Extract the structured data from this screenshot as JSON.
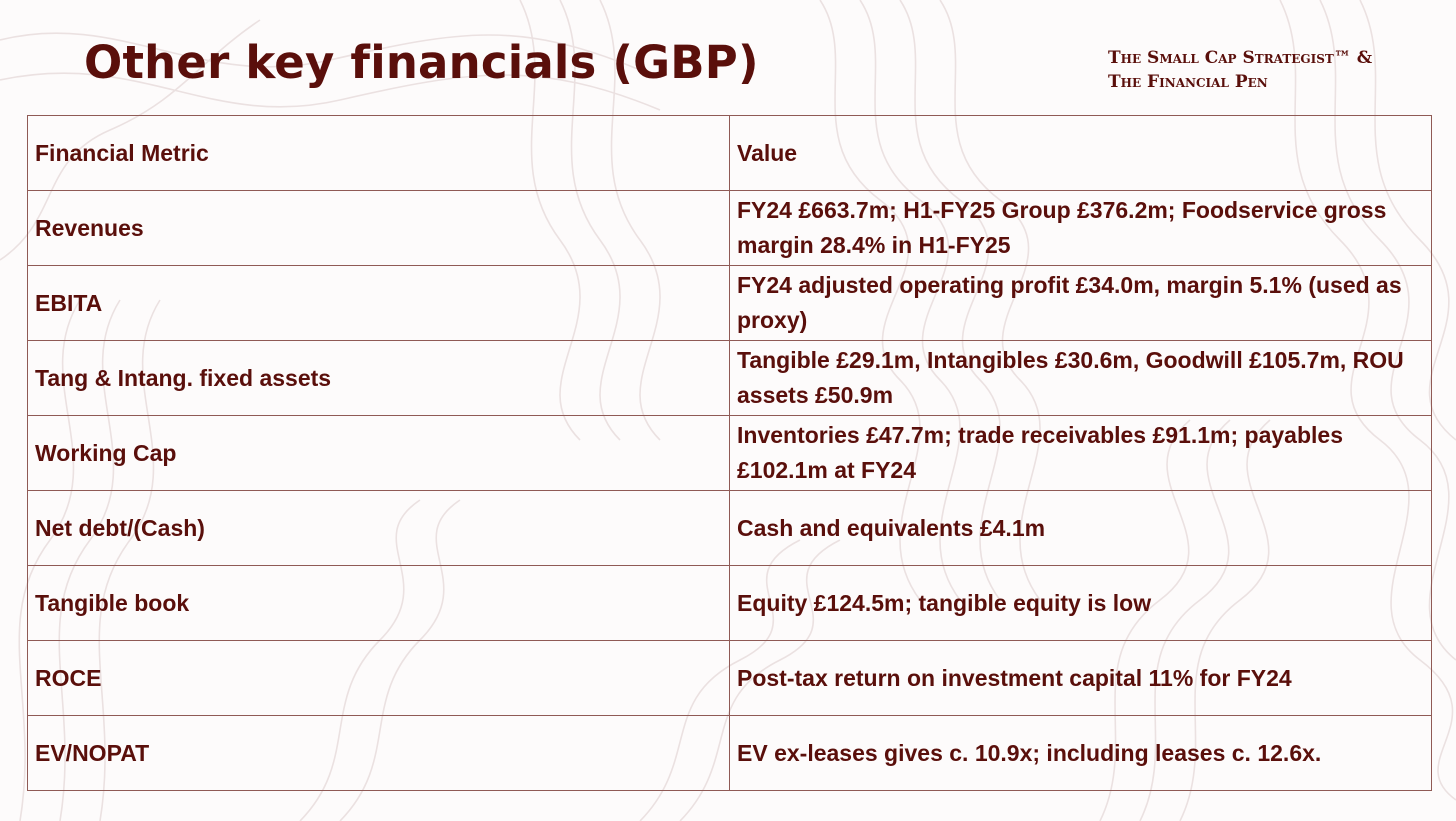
{
  "title": "Other key financials (GBP)",
  "brand": {
    "line1": "The Small Cap Strategist™ &",
    "line2": "The Financial Pen"
  },
  "colors": {
    "accent": "#5a0f0b",
    "border": "#8f5a55",
    "background": "#fdfbfb",
    "contour": "#e9dede"
  },
  "table": {
    "headers": [
      "Financial Metric",
      "Value"
    ],
    "rows": [
      {
        "metric": "Revenues",
        "value": "FY24 £663.7m; H1-FY25 Group £376.2m; Foodservice gross margin 28.4% in H1-FY25"
      },
      {
        "metric": "EBITA",
        "value": "FY24 adjusted operating profit £34.0m, margin 5.1% (used as proxy)"
      },
      {
        "metric": "Tang & Intang. fixed assets",
        "value": "Tangible £29.1m, Intangibles £30.6m, Goodwill £105.7m, ROU assets £50.9m"
      },
      {
        "metric": "Working Cap",
        "value": "Inventories £47.7m; trade receivables £91.1m; payables £102.1m at FY24"
      },
      {
        "metric": "Net debt/(Cash)",
        "value": "Cash and equivalents £4.1m"
      },
      {
        "metric": "Tangible book",
        "value": "Equity £124.5m; tangible equity is low"
      },
      {
        "metric": "ROCE",
        "value": "Post-tax return on investment capital 11% for FY24"
      },
      {
        "metric": "EV/NOPAT",
        "value": "EV ex-leases gives c. 10.9x; including leases c. 12.6x."
      }
    ]
  }
}
